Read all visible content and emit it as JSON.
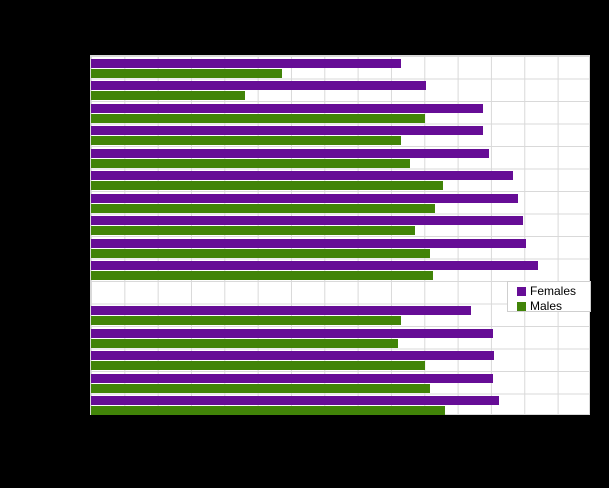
{
  "colors": {
    "page_background": "#000000",
    "plot_background": "#ffffff",
    "gridline": "#d9d9d9",
    "legend_border": "#cfcfcf",
    "legend_text": "#000000",
    "females": "#660d96",
    "males": "#418408"
  },
  "legend": {
    "position": "right-middle-inside-plot",
    "items": [
      {
        "label": "Females",
        "color": "#660d96"
      },
      {
        "label": "Males",
        "color": "#418408"
      }
    ]
  },
  "chart_data": {
    "type": "bar",
    "orientation": "horizontal",
    "title": "",
    "xlabel": "",
    "ylabel": "",
    "xlim": [
      0,
      15
    ],
    "gridline_interval": 1,
    "grid": true,
    "note": "Title, axis tick labels, category labels and source text are rendered black-on-black and are not visible in the screenshot; bar values are estimated in x-gridline units (15 equal intervals across the plot). Row index 10 is an empty separator row between the two category groups.",
    "categories": [
      "",
      "",
      "",
      "",
      "",
      "",
      "",
      "",
      "",
      "",
      "",
      "",
      "",
      "",
      "",
      ""
    ],
    "separator_row_index": 10,
    "series": [
      {
        "name": "Females",
        "color": "#660d96",
        "values": [
          9.35,
          10.1,
          11.8,
          11.8,
          12.0,
          12.7,
          12.85,
          13.0,
          13.1,
          13.45,
          null,
          11.45,
          12.1,
          12.15,
          12.1,
          12.3
        ]
      },
      {
        "name": "Males",
        "color": "#418408",
        "values": [
          5.75,
          4.65,
          10.05,
          9.35,
          9.6,
          10.6,
          10.35,
          9.75,
          10.2,
          10.3,
          null,
          9.35,
          9.25,
          10.05,
          10.2,
          10.65
        ]
      }
    ]
  }
}
